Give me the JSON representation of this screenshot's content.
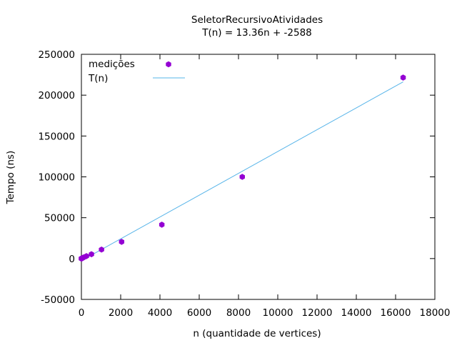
{
  "chart_data": {
    "type": "scatter",
    "title": "SeletorRecursivoAtividades",
    "subtitle": "T(n) = 13.36n + -2588",
    "xlabel": "n (quantidade de vertices)",
    "ylabel": "Tempo (ns)",
    "xlim": [
      0,
      18000
    ],
    "ylim": [
      -50000,
      250000
    ],
    "x_ticks": [
      0,
      2000,
      4000,
      6000,
      8000,
      10000,
      12000,
      14000,
      16000,
      18000
    ],
    "y_ticks": [
      -50000,
      0,
      50000,
      100000,
      150000,
      200000,
      250000
    ],
    "grid": false,
    "legend_position": "top-left",
    "series": [
      {
        "name": "medições",
        "kind": "points",
        "color": "#9400d3",
        "x": [
          1,
          2,
          4,
          8,
          16,
          32,
          64,
          128,
          256,
          512,
          1024,
          2048,
          4096,
          8192,
          16384
        ],
        "y": [
          0,
          0,
          0,
          100,
          200,
          400,
          800,
          1600,
          3000,
          5300,
          11000,
          20500,
          41500,
          100000,
          221500
        ]
      },
      {
        "name": "T(n)",
        "kind": "line",
        "color": "#56b4e9",
        "slope": 13.36,
        "intercept": -2588,
        "x": [
          1,
          16384
        ]
      }
    ]
  }
}
